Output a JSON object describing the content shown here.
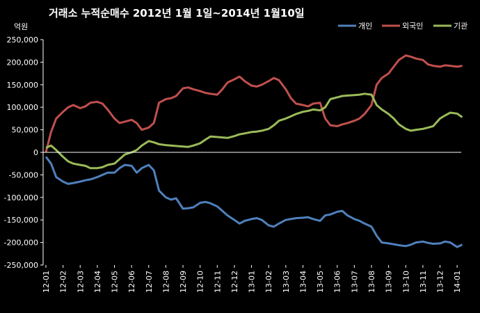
{
  "chart_data": {
    "type": "line",
    "title": "거래소  누적순매수 2012년 1월 1일~2014년 1월10일",
    "unit_label": "억원",
    "xlabel": "",
    "ylabel": "",
    "ylim": [
      -250000,
      250000
    ],
    "yticks": [
      {
        "value": 250000,
        "label": "250,000"
      },
      {
        "value": 200000,
        "label": "200,000"
      },
      {
        "value": 150000,
        "label": "150,000"
      },
      {
        "value": 100000,
        "label": "100,000"
      },
      {
        "value": 50000,
        "label": "50,000"
      },
      {
        "value": 0,
        "label": "0"
      },
      {
        "value": -50000,
        "label": "-50,000"
      },
      {
        "value": -100000,
        "label": "-100,000"
      },
      {
        "value": -150000,
        "label": "-150,000"
      },
      {
        "value": -200000,
        "label": "-200,000"
      },
      {
        "value": -250000,
        "label": "-250,000"
      }
    ],
    "categories": [
      "12-01",
      "12-02",
      "12-03",
      "12-04",
      "12-05",
      "12-06",
      "12-07",
      "12-08",
      "12-09",
      "12-10",
      "12-11",
      "12-12",
      "13-01",
      "13-02",
      "13-03",
      "13-04",
      "13-05",
      "13-06",
      "13-07",
      "13-08",
      "13-09",
      "13-10",
      "13-11",
      "13-12",
      "14-01"
    ],
    "x": [
      0,
      0.3,
      0.6,
      1,
      1.3,
      1.6,
      2,
      2.3,
      2.6,
      3,
      3.3,
      3.6,
      4,
      4.3,
      4.6,
      5,
      5.3,
      5.6,
      6,
      6.3,
      6.6,
      7,
      7.3,
      7.6,
      8,
      8.3,
      8.6,
      9,
      9.3,
      9.6,
      10,
      10.3,
      10.6,
      11,
      11.3,
      11.6,
      12,
      12.3,
      12.6,
      13,
      13.3,
      13.6,
      14,
      14.3,
      14.6,
      15,
      15.3,
      15.6,
      16,
      16.3,
      16.6,
      17,
      17.3,
      17.6,
      18,
      18.3,
      18.6,
      19,
      19.3,
      19.6,
      20,
      20.3,
      20.6,
      21,
      21.3,
      21.6,
      22,
      22.3,
      22.6,
      23,
      23.3,
      23.6,
      24,
      24.3
    ],
    "legend_position": "top-right",
    "grid": false,
    "series": [
      {
        "name": "개인",
        "color": "#4f81bd",
        "values": [
          -10000,
          -25000,
          -55000,
          -65000,
          -70000,
          -68000,
          -65000,
          -62000,
          -60000,
          -55000,
          -50000,
          -45000,
          -45000,
          -35000,
          -28000,
          -30000,
          -45000,
          -35000,
          -28000,
          -40000,
          -85000,
          -100000,
          -105000,
          -102000,
          -125000,
          -124000,
          -122000,
          -112000,
          -110000,
          -113000,
          -120000,
          -130000,
          -140000,
          -150000,
          -158000,
          -152000,
          -148000,
          -146000,
          -150000,
          -162000,
          -165000,
          -158000,
          -150000,
          -148000,
          -146000,
          -145000,
          -144000,
          -148000,
          -152000,
          -140000,
          -138000,
          -132000,
          -130000,
          -140000,
          -148000,
          -152000,
          -158000,
          -165000,
          -185000,
          -200000,
          -202000,
          -204000,
          -206000,
          -208000,
          -205000,
          -200000,
          -198000,
          -201000,
          -203000,
          -202000,
          -198000,
          -200000,
          -210000,
          -205000
        ]
      },
      {
        "name": "외국인",
        "color": "#c0504d",
        "values": [
          0,
          45000,
          75000,
          90000,
          100000,
          105000,
          98000,
          102000,
          110000,
          112000,
          108000,
          95000,
          75000,
          65000,
          68000,
          72000,
          65000,
          50000,
          55000,
          65000,
          110000,
          118000,
          120000,
          125000,
          142000,
          144000,
          140000,
          136000,
          132000,
          130000,
          128000,
          140000,
          155000,
          162000,
          168000,
          158000,
          148000,
          146000,
          150000,
          158000,
          165000,
          160000,
          140000,
          120000,
          108000,
          105000,
          102000,
          108000,
          110000,
          75000,
          60000,
          58000,
          62000,
          65000,
          70000,
          75000,
          85000,
          105000,
          150000,
          165000,
          175000,
          190000,
          205000,
          215000,
          212000,
          208000,
          205000,
          195000,
          192000,
          190000,
          193000,
          192000,
          190000,
          192000
        ]
      },
      {
        "name": "기관",
        "color": "#9bbb59",
        "values": [
          10000,
          15000,
          5000,
          -10000,
          -20000,
          -25000,
          -28000,
          -30000,
          -35000,
          -35000,
          -33000,
          -28000,
          -25000,
          -15000,
          -5000,
          0,
          5000,
          15000,
          25000,
          22000,
          18000,
          16000,
          15000,
          14000,
          13000,
          12000,
          15000,
          20000,
          28000,
          35000,
          34000,
          33000,
          32000,
          36000,
          40000,
          42000,
          45000,
          46000,
          48000,
          52000,
          60000,
          70000,
          75000,
          80000,
          85000,
          90000,
          92000,
          95000,
          93000,
          100000,
          118000,
          122000,
          125000,
          126000,
          127000,
          128000,
          130000,
          128000,
          105000,
          95000,
          85000,
          75000,
          62000,
          52000,
          48000,
          50000,
          52000,
          55000,
          58000,
          75000,
          82000,
          88000,
          86000,
          78000
        ]
      }
    ]
  }
}
